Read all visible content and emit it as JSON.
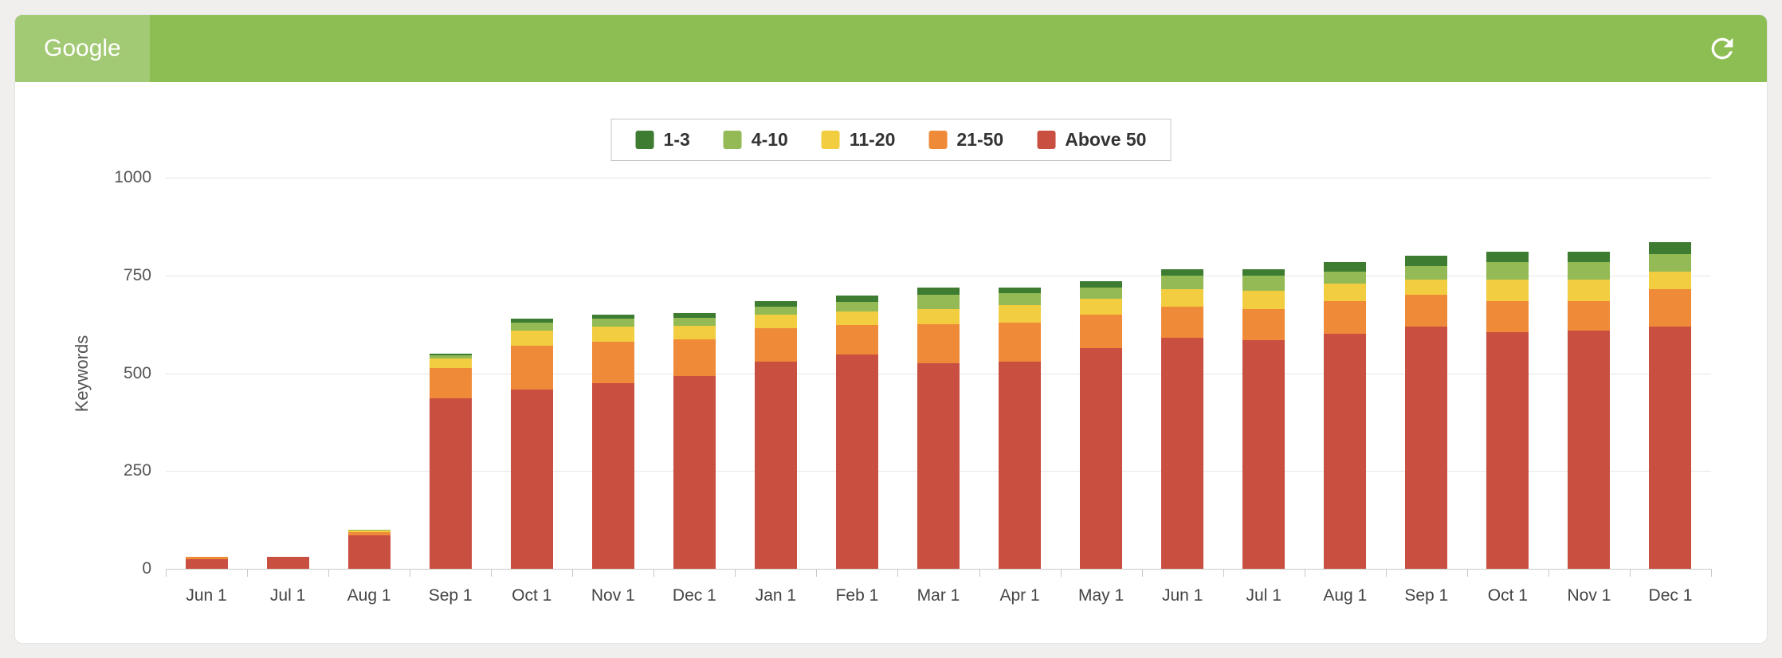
{
  "header": {
    "title": "Google"
  },
  "colors": {
    "page_bg": "#f0efee",
    "card_bg": "#ffffff",
    "header": "#8dbe53",
    "header_tab": "#a2c973",
    "icon": "#ffffff"
  },
  "icons": {
    "refresh": "refresh-icon"
  },
  "chart_data": {
    "type": "bar",
    "stacked": true,
    "title": "",
    "xlabel": "",
    "ylabel": "Keywords",
    "ylim": [
      0,
      1000
    ],
    "yticks": [
      0,
      250,
      500,
      750,
      1000
    ],
    "grid": true,
    "legend_position": "top-center",
    "stack_order": "first series renders as top segment, last series at bottom",
    "categories": [
      "Jun 1",
      "Jul 1",
      "Aug 1",
      "Sep 1",
      "Oct 1",
      "Nov 1",
      "Dec 1",
      "Jan 1",
      "Feb 1",
      "Mar 1",
      "Apr 1",
      "May 1",
      "Jun 1",
      "Jul 1",
      "Aug 1",
      "Sep 1",
      "Oct 1",
      "Nov 1",
      "Dec 1"
    ],
    "series": [
      {
        "name": "1-3",
        "color": "#3d7c31",
        "values": [
          0,
          0,
          0,
          3,
          10,
          10,
          12,
          15,
          15,
          20,
          15,
          15,
          15,
          15,
          25,
          25,
          25,
          25,
          30
        ]
      },
      {
        "name": "4-10",
        "color": "#93ba55",
        "values": [
          0,
          0,
          2,
          8,
          20,
          20,
          20,
          20,
          25,
          35,
          30,
          30,
          35,
          40,
          30,
          35,
          45,
          45,
          45
        ]
      },
      {
        "name": "11-20",
        "color": "#f2cd40",
        "values": [
          1,
          0,
          5,
          25,
          40,
          40,
          35,
          35,
          35,
          40,
          45,
          40,
          45,
          45,
          45,
          40,
          55,
          55,
          45
        ]
      },
      {
        "name": "21-50",
        "color": "#ef8a38",
        "values": [
          5,
          1,
          8,
          78,
          112,
          105,
          95,
          85,
          75,
          100,
          100,
          85,
          80,
          80,
          85,
          80,
          80,
          75,
          95
        ]
      },
      {
        "name": "Above 50",
        "color": "#c94f41",
        "values": [
          25,
          30,
          85,
          435,
          458,
          475,
          492,
          530,
          548,
          525,
          530,
          565,
          590,
          585,
          600,
          620,
          605,
          610,
          620
        ]
      }
    ]
  }
}
